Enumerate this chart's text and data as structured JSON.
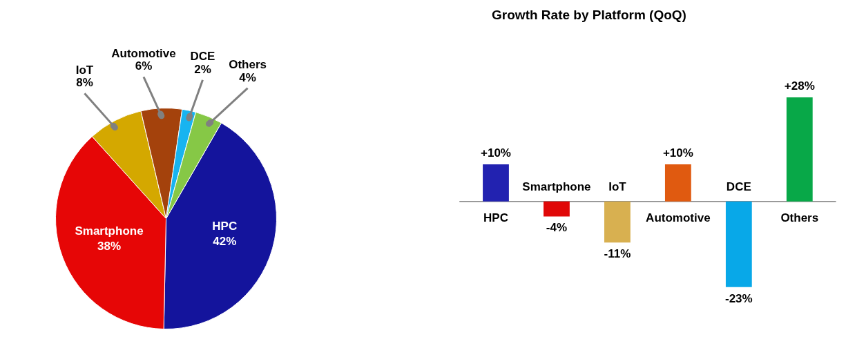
{
  "chart_data": [
    {
      "type": "pie",
      "categories": [
        "HPC",
        "Smartphone",
        "IoT",
        "Automotive",
        "DCE",
        "Others"
      ],
      "values": [
        42,
        38,
        8,
        6,
        2,
        4
      ],
      "colors": [
        "#14149c",
        "#e60606",
        "#d4a800",
        "#a4420c",
        "#18b4f0",
        "#86c846"
      ],
      "value_labels": [
        "42%",
        "38%",
        "8%",
        "6%",
        "2%",
        "4%"
      ]
    },
    {
      "type": "bar",
      "title": "Growth Rate by Platform (QoQ)",
      "categories": [
        "HPC",
        "Smartphone",
        "IoT",
        "Automotive",
        "DCE",
        "Others"
      ],
      "values": [
        10,
        -4,
        -11,
        10,
        -23,
        28
      ],
      "colors": [
        "#2222b0",
        "#e00808",
        "#d8b050",
        "#e05a10",
        "#08a8e8",
        "#08a848"
      ],
      "value_labels": [
        "+10%",
        "-4%",
        "-11%",
        "+10%",
        "-23%",
        "+28%"
      ],
      "tick_labels": "x"
    }
  ]
}
